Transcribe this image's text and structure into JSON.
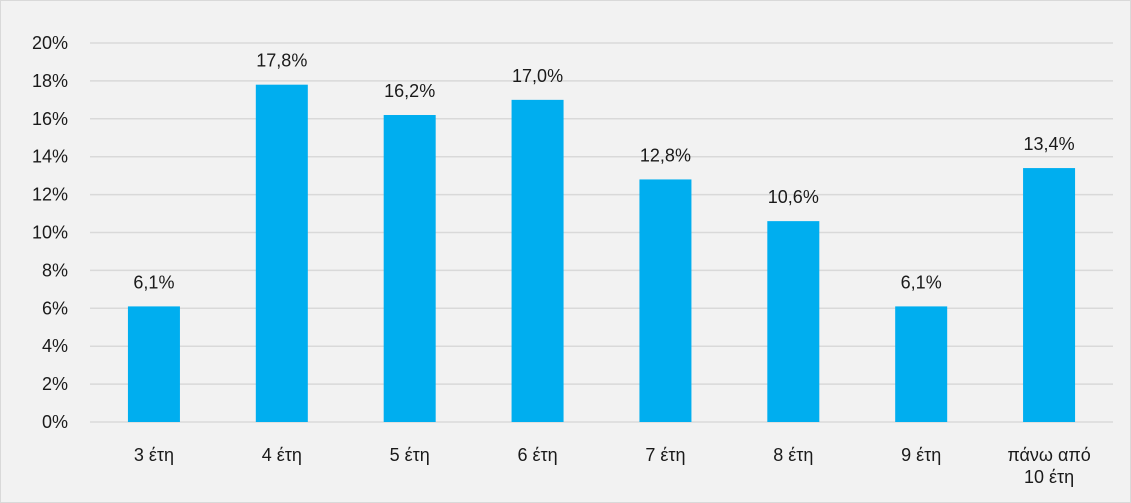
{
  "chart_data": {
    "type": "bar",
    "title": "",
    "xlabel": "",
    "ylabel": "",
    "categories": [
      "3 έτη",
      "4 έτη",
      "5 έτη",
      "6 έτη",
      "7 έτη",
      "8 έτη",
      "9 έτη",
      "πάνω από 10 έτη"
    ],
    "category_lines": [
      [
        "3 έτη"
      ],
      [
        "4 έτη"
      ],
      [
        "5 έτη"
      ],
      [
        "6 έτη"
      ],
      [
        "7 έτη"
      ],
      [
        "8 έτη"
      ],
      [
        "9 έτη"
      ],
      [
        "πάνω από",
        "10 έτη"
      ]
    ],
    "values": [
      6.1,
      17.8,
      16.2,
      17.0,
      12.8,
      10.6,
      6.1,
      13.4
    ],
    "data_labels": [
      "6,1%",
      "17,8%",
      "16,2%",
      "17,0%",
      "12,8%",
      "10,6%",
      "6,1%",
      "13,4%"
    ],
    "ylim": [
      0,
      20
    ],
    "y_ticks": [
      0,
      2,
      4,
      6,
      8,
      10,
      12,
      14,
      16,
      18,
      20
    ],
    "y_tick_labels": [
      "0%",
      "2%",
      "4%",
      "6%",
      "8%",
      "10%",
      "12%",
      "14%",
      "16%",
      "18%",
      "20%"
    ],
    "grid": true,
    "legend": "none",
    "colors": {
      "bar": "#00aeef",
      "gridline": "#d9d9d9",
      "background": "#f2f2f2",
      "text": "#1a1a1a"
    }
  }
}
